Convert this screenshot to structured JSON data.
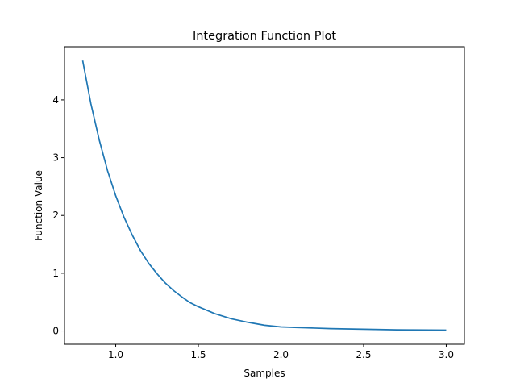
{
  "chart_data": {
    "type": "line",
    "title": "Integration Function Plot",
    "xlabel": "Samples",
    "ylabel": "Function Value",
    "xlim": [
      0.69,
      3.11
    ],
    "ylim": [
      -0.23,
      4.92
    ],
    "xticks": [
      1.0,
      1.5,
      2.0,
      2.5,
      3.0
    ],
    "xtick_labels": [
      "1.0",
      "1.5",
      "2.0",
      "2.5",
      "3.0"
    ],
    "yticks": [
      0,
      1,
      2,
      3,
      4
    ],
    "ytick_labels": [
      "0",
      "1",
      "2",
      "3",
      "4"
    ],
    "grid": false,
    "legend": "none",
    "series": [
      {
        "color": "#1f77b4",
        "x": [
          0.8,
          0.85,
          0.9,
          0.95,
          1.0,
          1.05,
          1.1,
          1.15,
          1.2,
          1.25,
          1.3,
          1.35,
          1.4,
          1.45,
          1.5,
          1.6,
          1.7,
          1.8,
          1.9,
          2.0,
          2.1,
          2.2,
          2.3,
          2.4,
          2.5,
          2.6,
          2.7,
          2.8,
          2.9,
          3.0
        ],
        "y": [
          4.68,
          3.93,
          3.31,
          2.78,
          2.34,
          1.97,
          1.66,
          1.39,
          1.17,
          0.99,
          0.83,
          0.7,
          0.59,
          0.49,
          0.42,
          0.3,
          0.21,
          0.15,
          0.1,
          0.07,
          0.06,
          0.05,
          0.04,
          0.035,
          0.03,
          0.025,
          0.02,
          0.018,
          0.016,
          0.015
        ]
      }
    ]
  }
}
